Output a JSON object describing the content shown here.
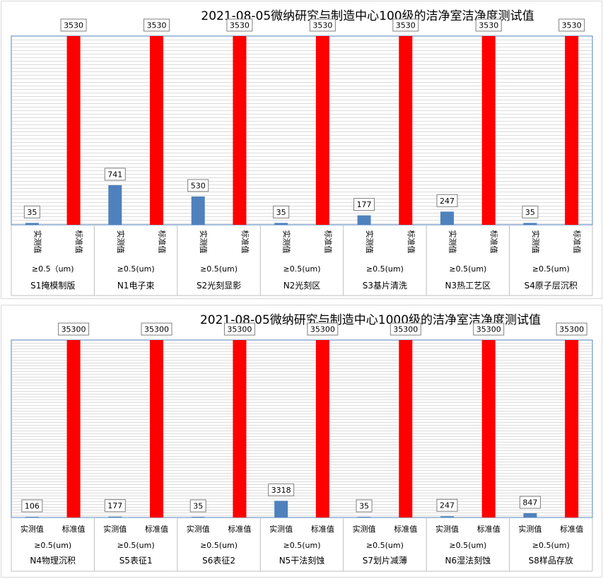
{
  "chart_data": [
    {
      "type": "bar",
      "title": "2021-08-05微纳研究与制造中心100级的洁净室洁净度测试值",
      "categories_text_rotation": "vertical",
      "series_labels": [
        "实测值",
        "标准值"
      ],
      "series_colors": [
        "#4f81bd",
        "#ff0000"
      ],
      "ylim": [
        0,
        3530
      ],
      "grid": true,
      "groups": [
        {
          "name": "S1掩模制版",
          "condition": "≥0.5（um)",
          "measured": 35,
          "standard": 3530
        },
        {
          "name": "N1电子束",
          "condition": "≥0.5(um)",
          "measured": 741,
          "standard": 3530
        },
        {
          "name": "S2光刻显影",
          "condition": "≥0.5(um)",
          "measured": 530,
          "standard": 3530
        },
        {
          "name": "N2光刻区",
          "condition": "≥0.5(um)",
          "measured": 35,
          "standard": 3530
        },
        {
          "name": "S3基片清洗",
          "condition": "≥0.5(um)",
          "measured": 177,
          "standard": 3530
        },
        {
          "name": "N3热工艺区",
          "condition": "≥0.5(um)",
          "measured": 247,
          "standard": 3530
        },
        {
          "name": "S4原子层沉积",
          "condition": "≥0.5(um)",
          "measured": 35,
          "standard": 3530
        }
      ]
    },
    {
      "type": "bar",
      "title": "2021-08-05微纳研究与制造中心1000级的洁净室洁净度测试值",
      "categories_text_rotation": "horizontal",
      "series_labels": [
        "实测值",
        "标准值"
      ],
      "series_colors": [
        "#4f81bd",
        "#ff0000"
      ],
      "ylim": [
        0,
        35300
      ],
      "grid": true,
      "groups": [
        {
          "name": "N4物理沉积",
          "condition": "≥0.5(um)",
          "measured": 106,
          "standard": 35300
        },
        {
          "name": "S5表征1",
          "condition": "≥0.5(um)",
          "measured": 177,
          "standard": 35300
        },
        {
          "name": "S6表征2",
          "condition": "≥0.5(um)",
          "measured": 35,
          "standard": 35300
        },
        {
          "name": "N5干法刻蚀",
          "condition": "≥0.5(um)",
          "measured": 3318,
          "standard": 35300
        },
        {
          "name": "S7划片减薄",
          "condition": "≥0.5(um)",
          "measured": 35,
          "standard": 35300
        },
        {
          "name": "N6湿法刻蚀",
          "condition": "≥0.5(um)",
          "measured": 247,
          "standard": 35300
        },
        {
          "name": "S8样品存放",
          "condition": "≥0.5(um)",
          "measured": 847,
          "standard": 35300
        }
      ]
    }
  ]
}
